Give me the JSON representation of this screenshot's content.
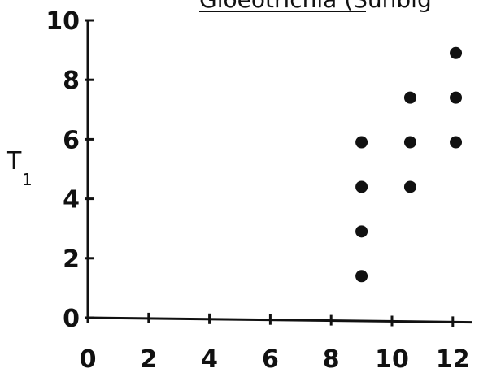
{
  "chart_data": {
    "type": "scatter",
    "title": "Gloeotrichia (Sunbig",
    "ylabel": "T",
    "ylabel_subscript": "1",
    "xlabel": "",
    "xlim": [
      0,
      12
    ],
    "ylim": [
      0,
      10
    ],
    "x_ticks": [
      0,
      2,
      4,
      6,
      8,
      10,
      12
    ],
    "y_ticks": [
      0,
      2,
      4,
      6,
      8,
      10
    ],
    "grid": false,
    "marker_color": "#111111",
    "points": [
      {
        "x": 9.0,
        "y": 1.4
      },
      {
        "x": 9.0,
        "y": 2.9
      },
      {
        "x": 9.0,
        "y": 4.4
      },
      {
        "x": 9.0,
        "y": 5.9
      },
      {
        "x": 10.6,
        "y": 4.4
      },
      {
        "x": 10.6,
        "y": 5.9
      },
      {
        "x": 10.6,
        "y": 7.4
      },
      {
        "x": 12.1,
        "y": 5.9
      },
      {
        "x": 12.1,
        "y": 7.4
      },
      {
        "x": 12.1,
        "y": 8.9
      }
    ]
  }
}
